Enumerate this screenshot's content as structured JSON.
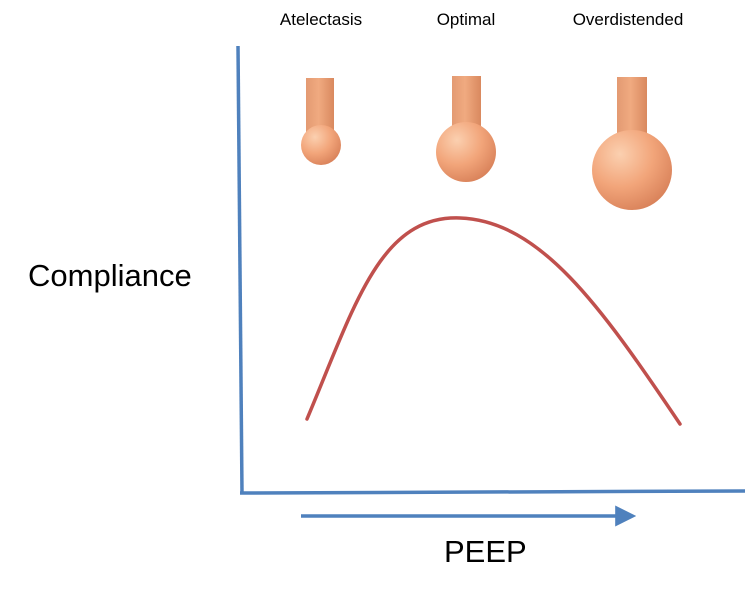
{
  "diagram": {
    "states": [
      {
        "label": "Atelectasis",
        "size": "small"
      },
      {
        "label": "Optimal",
        "size": "medium"
      },
      {
        "label": "Overdistended",
        "size": "large"
      }
    ],
    "y_axis_label": "Compliance",
    "x_axis_label": "PEEP",
    "colors": {
      "axis": "#4f81bd",
      "curve": "#c0504d",
      "alveolus_light": "#fbd0b0",
      "alveolus_mid": "#f2a57a",
      "alveolus_dark": "#d9825a",
      "background": "#ffffff"
    }
  }
}
